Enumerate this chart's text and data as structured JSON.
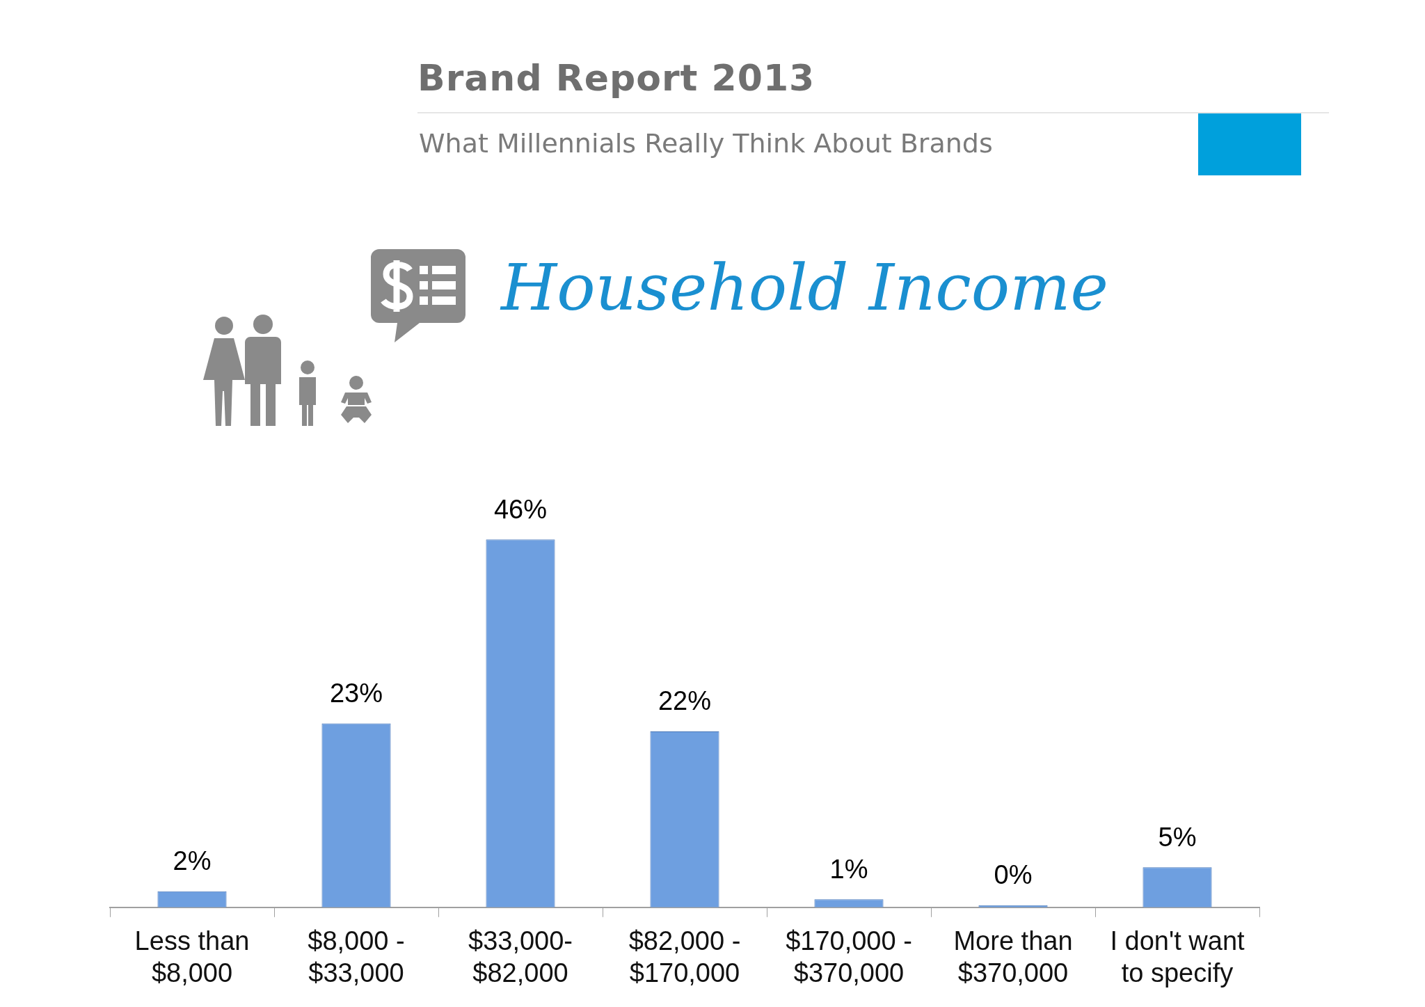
{
  "chart_data": {
    "type": "bar",
    "title": "Brand Report 2013",
    "subtitle": "What Millennials Really Think About Brands",
    "annotations": [
      "Household Income"
    ],
    "categories": [
      "Less than $8,000",
      "$8,000 - $33,000",
      "$33,000-$82,000",
      "$82,000 - $170,000",
      "$170,000 - $370,000",
      "More than $370,000",
      "I don't want to specify"
    ],
    "values": [
      2,
      23,
      46,
      22,
      1,
      0,
      5
    ],
    "value_labels": [
      "2%",
      "23%",
      "46%",
      "22%",
      "1%",
      "0%",
      "5%"
    ],
    "color": "#6e9fe0",
    "grid": false,
    "legend": false
  }
}
